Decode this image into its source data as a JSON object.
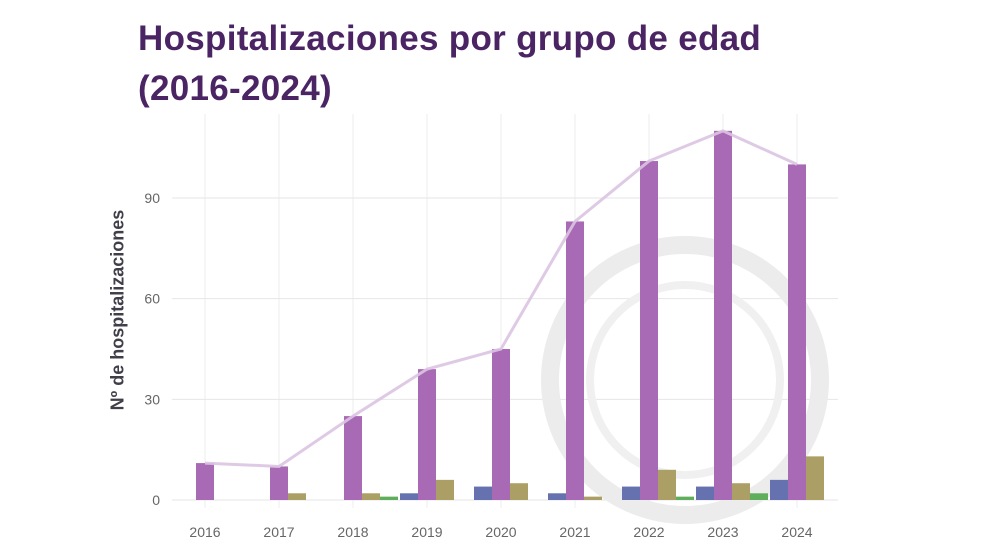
{
  "chart_data": {
    "type": "bar",
    "title": "Hospitalizaciones por grupo de edad (2016-2024)",
    "xlabel": "",
    "ylabel": "Nº de hospitalizaciones",
    "categories": [
      "2016",
      "2017",
      "2018",
      "2019",
      "2020",
      "2021",
      "2022",
      "2023",
      "2024"
    ],
    "yticks": [
      0,
      30,
      60,
      90
    ],
    "ylim": [
      0,
      115
    ],
    "grid": true,
    "legend": "none",
    "series": [
      {
        "color": "#6672b0",
        "values": [
          0,
          0,
          0,
          2,
          4,
          2,
          4,
          4,
          6
        ]
      },
      {
        "color": "#a86ab4",
        "values": [
          11,
          10,
          25,
          39,
          45,
          83,
          101,
          110,
          100
        ]
      },
      {
        "color": "#ab9f65",
        "values": [
          0,
          2,
          2,
          6,
          5,
          1,
          9,
          5,
          13
        ]
      },
      {
        "color": "#5fae5c",
        "values": [
          0,
          0,
          1,
          0,
          0,
          0,
          1,
          2,
          0
        ]
      }
    ],
    "line": {
      "color": "#dcc4e2",
      "values": [
        11,
        10,
        25,
        39,
        45,
        83,
        101,
        110,
        100
      ]
    }
  }
}
